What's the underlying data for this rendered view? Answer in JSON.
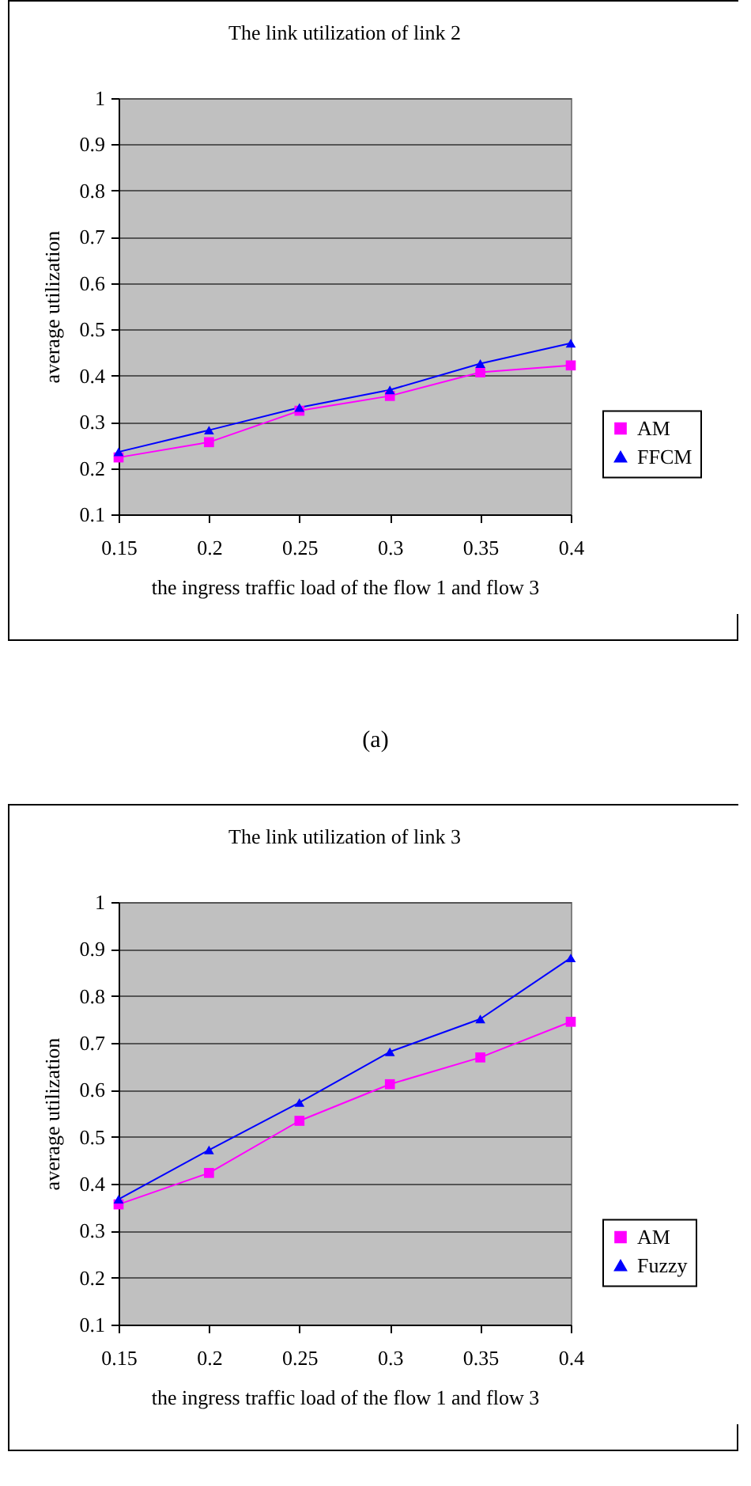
{
  "chart_data": [
    {
      "type": "line",
      "title": "The link utilization of link 2",
      "xlabel": "the ingress traffic load of the flow 1 and flow 3",
      "ylabel": "average utilization",
      "categories": [
        "0.15",
        "0.2",
        "0.25",
        "0.3",
        "0.35",
        "0.4"
      ],
      "series": [
        {
          "name": "AM",
          "color": "#ff00ff",
          "marker": "square",
          "values": [
            0.223,
            0.256,
            0.324,
            0.356,
            0.407,
            0.422
          ]
        },
        {
          "name": "FFCM",
          "color": "#0000ff",
          "marker": "triangle",
          "values": [
            0.235,
            0.282,
            0.331,
            0.369,
            0.426,
            0.47
          ]
        }
      ],
      "ylim": [
        0.1,
        1
      ],
      "yticks": [
        0.1,
        0.2,
        0.3,
        0.4,
        0.5,
        0.6,
        0.7,
        0.8,
        0.9,
        1
      ],
      "grid": "y",
      "legend": "right",
      "annotations": [
        "(a)"
      ]
    },
    {
      "type": "line",
      "title": "The link utilization of link 3",
      "xlabel": "the ingress traffic load of the flow 1 and flow 3",
      "ylabel": "average utilization",
      "categories": [
        "0.15",
        "0.2",
        "0.25",
        "0.3",
        "0.35",
        "0.4"
      ],
      "series": [
        {
          "name": "AM",
          "color": "#ff00ff",
          "marker": "square",
          "values": [
            0.356,
            0.423,
            0.534,
            0.612,
            0.669,
            0.745
          ]
        },
        {
          "name": "Fuzzy",
          "color": "#0000ff",
          "marker": "triangle",
          "values": [
            0.367,
            0.472,
            0.573,
            0.681,
            0.751,
            0.881
          ]
        }
      ],
      "ylim": [
        0.1,
        1
      ],
      "yticks": [
        0.1,
        0.2,
        0.3,
        0.4,
        0.5,
        0.6,
        0.7,
        0.8,
        0.9,
        1
      ],
      "grid": "y",
      "legend": "right"
    }
  ]
}
